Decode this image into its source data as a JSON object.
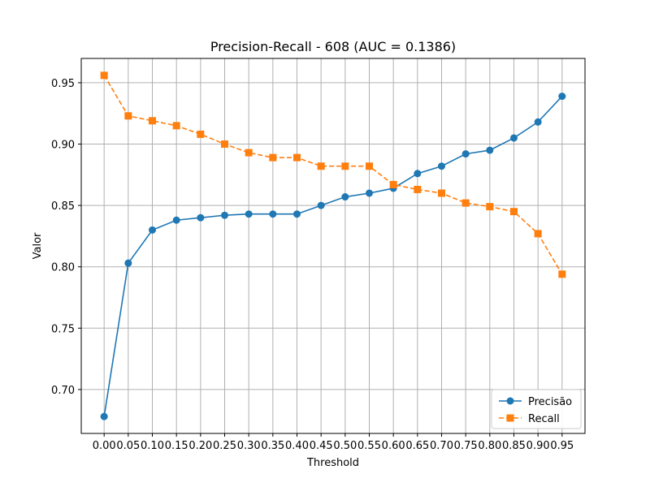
{
  "chart_data": {
    "type": "line",
    "title": "Precision-Recall - 608 (AUC = 0.1386)",
    "xlabel": "Threshold",
    "ylabel": "Valor",
    "x": [
      0.0,
      0.05,
      0.1,
      0.15,
      0.2,
      0.25,
      0.3,
      0.35,
      0.4,
      0.45,
      0.5,
      0.55,
      0.6,
      0.65,
      0.7,
      0.75,
      0.8,
      0.85,
      0.9,
      0.95
    ],
    "x_tick_labels": [
      "0.00",
      "0.05",
      "0.10",
      "0.15",
      "0.20",
      "0.25",
      "0.30",
      "0.35",
      "0.40",
      "0.45",
      "0.50",
      "0.55",
      "0.60",
      "0.65",
      "0.70",
      "0.75",
      "0.80",
      "0.85",
      "0.90",
      "0.95"
    ],
    "y_ticks": [
      0.7,
      0.75,
      0.8,
      0.85,
      0.9,
      0.95
    ],
    "y_tick_labels": [
      "0.70",
      "0.75",
      "0.80",
      "0.85",
      "0.90",
      "0.95"
    ],
    "xlim": [
      -0.0475,
      0.9975
    ],
    "ylim": [
      0.6642,
      0.9698
    ],
    "grid": true,
    "legend_position": "lower-right",
    "series": [
      {
        "name": "Precisão",
        "color": "#1f77b4",
        "marker": "circle",
        "linestyle": "solid",
        "values": [
          0.678,
          0.803,
          0.83,
          0.838,
          0.84,
          0.842,
          0.843,
          0.843,
          0.843,
          0.85,
          0.857,
          0.86,
          0.864,
          0.876,
          0.882,
          0.892,
          0.895,
          0.905,
          0.918,
          0.939
        ]
      },
      {
        "name": "Recall",
        "color": "#ff7f0e",
        "marker": "square",
        "linestyle": "dashed",
        "values": [
          0.956,
          0.923,
          0.919,
          0.915,
          0.908,
          0.9,
          0.893,
          0.889,
          0.889,
          0.882,
          0.882,
          0.882,
          0.867,
          0.863,
          0.86,
          0.852,
          0.849,
          0.845,
          0.827,
          0.794
        ]
      }
    ]
  }
}
